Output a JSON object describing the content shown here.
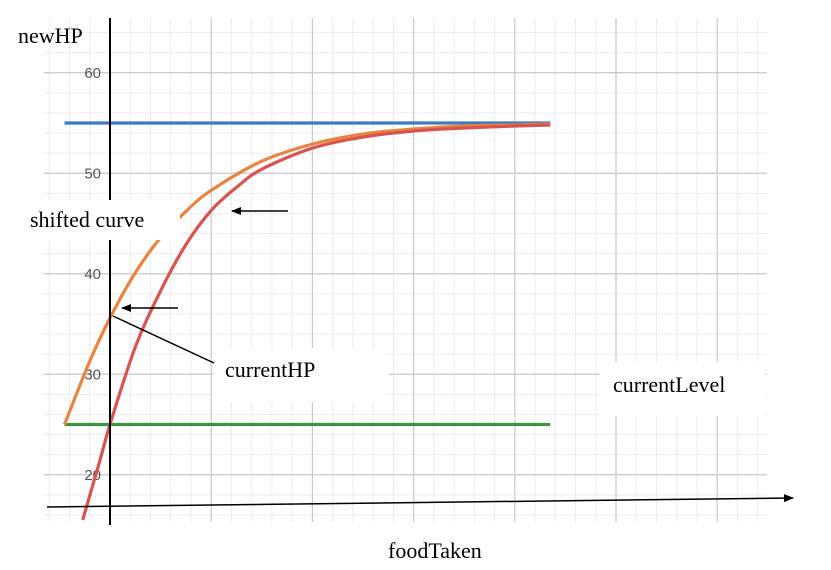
{
  "chart_data": {
    "type": "line",
    "title": "",
    "xlabel": "foodTaken",
    "ylabel": "newHP",
    "ylim": [
      15.5,
      66
    ],
    "grid": true,
    "y_ticks": [
      20,
      30,
      40,
      50,
      60
    ],
    "series": [
      {
        "name": "",
        "color": "#3e7cc2",
        "x": [
          -0.45,
          4.35
        ],
        "y": [
          55,
          55
        ]
      },
      {
        "name": "",
        "color": "#3f9143",
        "x": [
          -0.45,
          4.35
        ],
        "y": [
          25,
          25
        ]
      },
      {
        "name": "",
        "color": "#e8843e",
        "x": [
          -0.45,
          -0.2,
          0,
          0.25,
          0.5,
          0.75,
          1.0,
          1.5,
          2.0,
          2.5,
          3.0,
          3.5,
          4.0,
          4.35
        ],
        "y": [
          25,
          31.3,
          35.6,
          40.1,
          43.6,
          46.2,
          48.3,
          51.2,
          52.9,
          53.9,
          54.4,
          54.7,
          54.8,
          54.9
        ]
      },
      {
        "name": "",
        "color": "#d9534f",
        "x": [
          -0.27,
          -0.1,
          0,
          0.25,
          0.5,
          0.75,
          1.0,
          1.25,
          1.5,
          2.0,
          2.5,
          3.0,
          3.5,
          4.0,
          4.35
        ],
        "y": [
          15.5,
          21.4,
          25,
          32.7,
          38.3,
          42.9,
          46.3,
          48.6,
          50.4,
          52.5,
          53.6,
          54.2,
          54.5,
          54.7,
          54.8
        ]
      }
    ],
    "annotations": {
      "shifted": "shifted curve",
      "currentHP": "currentHP",
      "currentLevel": "currentLevel"
    }
  }
}
